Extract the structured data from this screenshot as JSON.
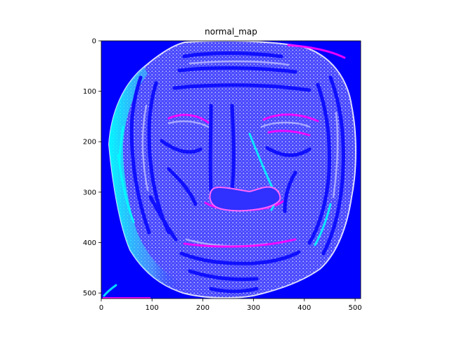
{
  "chart_data": {
    "type": "heatmap",
    "title": "normal_map",
    "xlabel": "",
    "ylabel": "",
    "xlim": [
      0,
      511
    ],
    "ylim": [
      511,
      0
    ],
    "x_ticks": [
      0,
      100,
      200,
      300,
      400,
      500
    ],
    "y_ticks": [
      0,
      100,
      200,
      300,
      400,
      500
    ],
    "image": {
      "content": "normal map rendering of a face",
      "background_color": "#0000ff",
      "palette": [
        "#0000ff",
        "#6a6aff",
        "#b8b8ff",
        "#ff00ff",
        "#00ffff",
        "#ffffff"
      ]
    }
  }
}
